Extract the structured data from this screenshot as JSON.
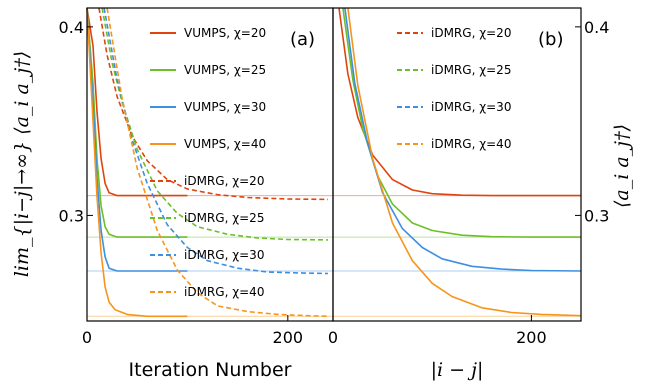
{
  "chart_data": [
    {
      "type": "line",
      "panel_label": "(a)",
      "xlabel": "Iteration Number",
      "ylabel": "lim_{|i−j|→∞} ⟨a_i a_j†⟩",
      "xlim": [
        0,
        245
      ],
      "ylim": [
        0.244,
        0.41
      ],
      "xticks": [
        "0",
        "200"
      ],
      "yticks": [
        "0.3",
        "0.4"
      ],
      "legend_position": "top-right",
      "series": [
        {
          "name": "VUMPS, χ=20",
          "color": "#e0440e",
          "style": "solid",
          "x": [
            0,
            6,
            10,
            14,
            18,
            22,
            30,
            50,
            100
          ],
          "y": [
            0.41,
            0.39,
            0.355,
            0.33,
            0.317,
            0.312,
            0.3105,
            0.3105,
            0.3105
          ]
        },
        {
          "name": "VUMPS, χ=25",
          "color": "#6cbf2a",
          "style": "solid",
          "x": [
            0,
            6,
            10,
            14,
            18,
            22,
            30,
            50,
            100
          ],
          "y": [
            0.41,
            0.37,
            0.33,
            0.305,
            0.294,
            0.29,
            0.2885,
            0.2885,
            0.2885
          ]
        },
        {
          "name": "VUMPS, χ=30",
          "color": "#3d8fe0",
          "style": "solid",
          "x": [
            0,
            6,
            10,
            14,
            18,
            22,
            30,
            50,
            100
          ],
          "y": [
            0.41,
            0.36,
            0.32,
            0.292,
            0.278,
            0.272,
            0.2705,
            0.2705,
            0.2705
          ]
        },
        {
          "name": "VUMPS, χ=40",
          "color": "#f7941d",
          "style": "solid",
          "x": [
            0,
            6,
            10,
            14,
            18,
            22,
            28,
            40,
            60,
            100
          ],
          "y": [
            0.41,
            0.35,
            0.31,
            0.28,
            0.262,
            0.254,
            0.25,
            0.2475,
            0.2465,
            0.2465
          ]
        },
        {
          "name": "iDMRG, χ=20",
          "color": "#e0440e",
          "style": "dashed",
          "x": [
            12,
            20,
            30,
            45,
            60,
            80,
            100,
            130,
            160,
            200,
            240
          ],
          "y": [
            0.41,
            0.385,
            0.363,
            0.342,
            0.329,
            0.319,
            0.314,
            0.311,
            0.3095,
            0.3087,
            0.3085
          ]
        },
        {
          "name": "iDMRG, χ=25",
          "color": "#6cbf2a",
          "style": "dashed",
          "x": [
            15,
            25,
            35,
            50,
            70,
            90,
            110,
            140,
            170,
            200,
            240
          ],
          "y": [
            0.41,
            0.381,
            0.36,
            0.335,
            0.313,
            0.301,
            0.294,
            0.29,
            0.288,
            0.2872,
            0.287
          ]
        },
        {
          "name": "iDMRG, χ=30",
          "color": "#3d8fe0",
          "style": "dashed",
          "x": [
            17,
            30,
            45,
            60,
            80,
            100,
            120,
            150,
            180,
            210,
            240
          ],
          "y": [
            0.41,
            0.372,
            0.34,
            0.317,
            0.295,
            0.283,
            0.276,
            0.272,
            0.27,
            0.2695,
            0.2692
          ]
        },
        {
          "name": "iDMRG, χ=40",
          "color": "#f7941d",
          "style": "dashed",
          "x": [
            20,
            35,
            50,
            70,
            90,
            110,
            130,
            160,
            190,
            220,
            240
          ],
          "y": [
            0.41,
            0.362,
            0.325,
            0.292,
            0.271,
            0.259,
            0.252,
            0.249,
            0.2475,
            0.2468,
            0.2465
          ]
        }
      ],
      "reference_lines": [
        {
          "color": "#e0440e",
          "y": 0.3105
        },
        {
          "color": "#6cbf2a",
          "y": 0.2885
        },
        {
          "color": "#3d8fe0",
          "y": 0.2705
        },
        {
          "color": "#f7941d",
          "y": 0.2465
        }
      ]
    },
    {
      "type": "line",
      "panel_label": "(b)",
      "xlabel": "|i − j|",
      "ylabel": "⟨a_i a_j†⟩",
      "xlim": [
        0,
        250
      ],
      "ylim": [
        0.244,
        0.41
      ],
      "xticks": [
        "0",
        "200"
      ],
      "yticks": [
        "0.3",
        "0.4"
      ],
      "legend_position": "top-right",
      "series": [
        {
          "name": "iDMRG, χ=20",
          "color": "#e0440e",
          "style": "dashed",
          "legend_only": true
        },
        {
          "name": "iDMRG, χ=25",
          "color": "#6cbf2a",
          "style": "dashed",
          "legend_only": true
        },
        {
          "name": "iDMRG, χ=30",
          "color": "#3d8fe0",
          "style": "dashed",
          "legend_only": true
        },
        {
          "name": "iDMRG, χ=40",
          "color": "#f7941d",
          "style": "dashed",
          "legend_only": true
        },
        {
          "color": "#e0440e",
          "style": "solid",
          "x": [
            6,
            15,
            25,
            40,
            60,
            80,
            100,
            130,
            160,
            200,
            250
          ],
          "y": [
            0.41,
            0.375,
            0.352,
            0.332,
            0.319,
            0.3135,
            0.3115,
            0.3107,
            0.3105,
            0.3105,
            0.3105
          ]
        },
        {
          "color": "#6cbf2a",
          "style": "solid",
          "x": [
            10,
            20,
            30,
            45,
            60,
            80,
            100,
            130,
            160,
            200,
            250
          ],
          "y": [
            0.41,
            0.372,
            0.346,
            0.321,
            0.306,
            0.296,
            0.292,
            0.2895,
            0.2887,
            0.2885,
            0.2885
          ]
        },
        {
          "color": "#3d8fe0",
          "style": "solid",
          "x": [
            12,
            22,
            35,
            50,
            70,
            90,
            110,
            140,
            170,
            200,
            250
          ],
          "y": [
            0.41,
            0.37,
            0.338,
            0.312,
            0.293,
            0.283,
            0.277,
            0.273,
            0.2715,
            0.2708,
            0.2705
          ]
        },
        {
          "color": "#f7941d",
          "style": "solid",
          "x": [
            15,
            25,
            40,
            60,
            80,
            100,
            120,
            150,
            180,
            210,
            250
          ],
          "y": [
            0.41,
            0.369,
            0.33,
            0.296,
            0.276,
            0.264,
            0.257,
            0.251,
            0.2485,
            0.2475,
            0.2468
          ]
        }
      ],
      "reference_lines": [
        {
          "color": "#e0440e",
          "y": 0.3105
        },
        {
          "color": "#6cbf2a",
          "y": 0.2885
        },
        {
          "color": "#3d8fe0",
          "y": 0.2705
        },
        {
          "color": "#f7941d",
          "y": 0.2465
        }
      ]
    }
  ]
}
